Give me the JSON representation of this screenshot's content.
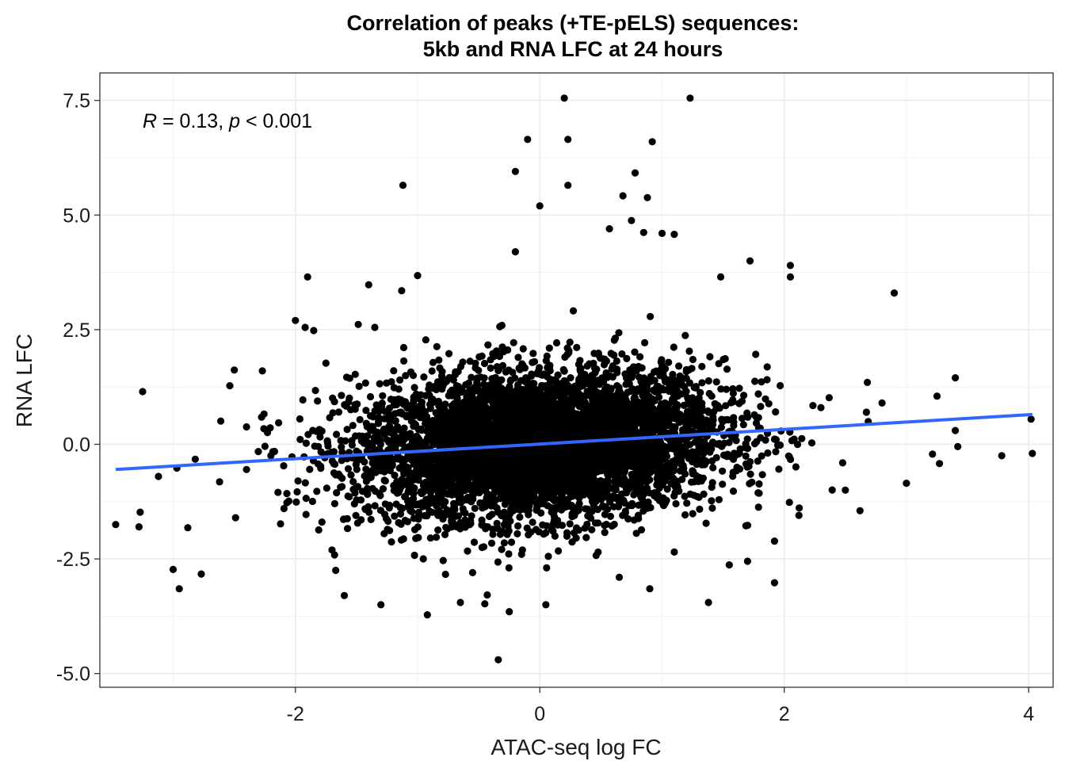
{
  "chart_data": {
    "type": "scatter",
    "title_lines": [
      "Correlation of peaks (+TE-pELS) sequences:",
      "5kb and RNA LFC at 24 hours"
    ],
    "xlabel": "ATAC-seq log FC",
    "ylabel": "RNA LFC",
    "xlim": [
      -3.6,
      4.2
    ],
    "ylim": [
      -5.3,
      8.1
    ],
    "x_ticks": [
      -2,
      0,
      2,
      4
    ],
    "x_tick_labels": [
      "-2",
      "0",
      "2",
      "4"
    ],
    "y_ticks": [
      -5.0,
      -2.5,
      0.0,
      2.5,
      5.0,
      7.5
    ],
    "y_tick_labels": [
      "-5.0",
      "-2.5",
      "0.0",
      "2.5",
      "5.0",
      "7.5"
    ],
    "grid": true,
    "annotation": {
      "r_symbol": "R",
      "r_text": " = 0.13, ",
      "p_symbol": "p",
      "p_text": " < 0.001"
    },
    "point_color": "#000000",
    "fit_line": {
      "color": "#3366ff",
      "x": [
        -3.47,
        4.03
      ],
      "y": [
        -0.55,
        0.65
      ]
    },
    "bulk_cluster": {
      "description_count_shown": "thousands of points",
      "center": [
        0.0,
        0.0
      ],
      "sd_x": 0.75,
      "sd_y": 0.8
    },
    "points": [
      [
        0.2,
        7.55
      ],
      [
        1.23,
        7.55
      ],
      [
        -0.1,
        6.65
      ],
      [
        0.23,
        6.65
      ],
      [
        0.92,
        6.6
      ],
      [
        -0.2,
        5.95
      ],
      [
        0.78,
        5.92
      ],
      [
        -1.12,
        5.65
      ],
      [
        0.23,
        5.65
      ],
      [
        0.68,
        5.42
      ],
      [
        0.88,
        5.38
      ],
      [
        0.0,
        5.2
      ],
      [
        0.75,
        4.88
      ],
      [
        0.57,
        4.7
      ],
      [
        0.85,
        4.62
      ],
      [
        1.0,
        4.6
      ],
      [
        1.1,
        4.58
      ],
      [
        1.72,
        4.0
      ],
      [
        2.05,
        3.9
      ],
      [
        -0.2,
        4.2
      ],
      [
        -1.9,
        3.65
      ],
      [
        -1.0,
        3.68
      ],
      [
        -1.4,
        3.48
      ],
      [
        -1.13,
        3.35
      ],
      [
        2.9,
        3.3
      ],
      [
        1.48,
        3.65
      ],
      [
        2.05,
        3.65
      ],
      [
        3.4,
        1.45
      ],
      [
        -3.25,
        1.15
      ],
      [
        -2.5,
        1.62
      ],
      [
        -2.27,
        1.6
      ],
      [
        -2.0,
        2.7
      ],
      [
        -1.92,
        2.55
      ],
      [
        -1.85,
        2.48
      ],
      [
        -1.35,
        2.55
      ],
      [
        -3.47,
        -1.75
      ],
      [
        -3.27,
        -1.48
      ],
      [
        -3.28,
        -1.8
      ],
      [
        -2.88,
        -1.82
      ],
      [
        -3.0,
        -2.73
      ],
      [
        -2.95,
        -3.15
      ],
      [
        -2.77,
        -2.83
      ],
      [
        -0.92,
        -3.72
      ],
      [
        -0.34,
        -4.7
      ],
      [
        -1.3,
        -3.5
      ],
      [
        -0.65,
        -3.45
      ],
      [
        -0.45,
        -3.48
      ],
      [
        -0.25,
        -3.65
      ],
      [
        0.05,
        -3.5
      ],
      [
        1.38,
        -3.45
      ],
      [
        1.92,
        -3.02
      ],
      [
        3.0,
        -0.85
      ],
      [
        3.27,
        -0.42
      ],
      [
        3.4,
        0.3
      ],
      [
        3.42,
        -0.05
      ],
      [
        3.78,
        -0.25
      ],
      [
        4.03,
        -0.2
      ],
      [
        4.02,
        0.55
      ],
      [
        3.25,
        1.05
      ],
      [
        2.68,
        1.35
      ],
      [
        2.5,
        -1.0
      ],
      [
        2.8,
        0.9
      ],
      [
        2.62,
        -1.45
      ],
      [
        2.3,
        0.8
      ],
      [
        -3.12,
        -0.7
      ],
      [
        -2.97,
        -0.52
      ],
      [
        -2.62,
        -0.82
      ],
      [
        -2.4,
        -0.55
      ],
      [
        -1.6,
        -3.3
      ],
      [
        -1.67,
        -2.75
      ],
      [
        0.9,
        -3.15
      ],
      [
        1.1,
        -2.35
      ],
      [
        1.55,
        -2.63
      ],
      [
        1.7,
        -2.55
      ],
      [
        2.12,
        -1.55
      ],
      [
        -2.4,
        0.38
      ],
      [
        -2.2,
        -0.25
      ],
      [
        -1.75,
        1.77
      ],
      [
        0.65,
        -2.9
      ],
      [
        -0.55,
        -2.8
      ]
    ]
  }
}
